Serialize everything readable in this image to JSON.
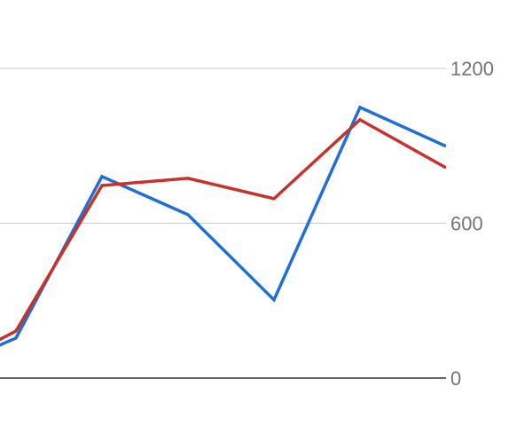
{
  "chart_data": {
    "type": "line",
    "title": "",
    "xlabel": "",
    "ylabel": "",
    "ylim": [
      0,
      1200
    ],
    "y_axis_position": "right",
    "y_ticks": [
      "0",
      "600",
      "1200"
    ],
    "y_tick_values": [
      0,
      600,
      1200
    ],
    "grid": true,
    "legend": "none",
    "x": [
      0,
      1,
      2,
      3,
      4,
      5,
      6
    ],
    "series": [
      {
        "color": "#1f6fd6",
        "values": [
          10,
          155,
          781,
          633,
          303,
          1049,
          898
        ]
      },
      {
        "color": "#c9322b",
        "values": [
          10,
          182,
          746,
          774,
          695,
          1001,
          815
        ]
      }
    ]
  }
}
